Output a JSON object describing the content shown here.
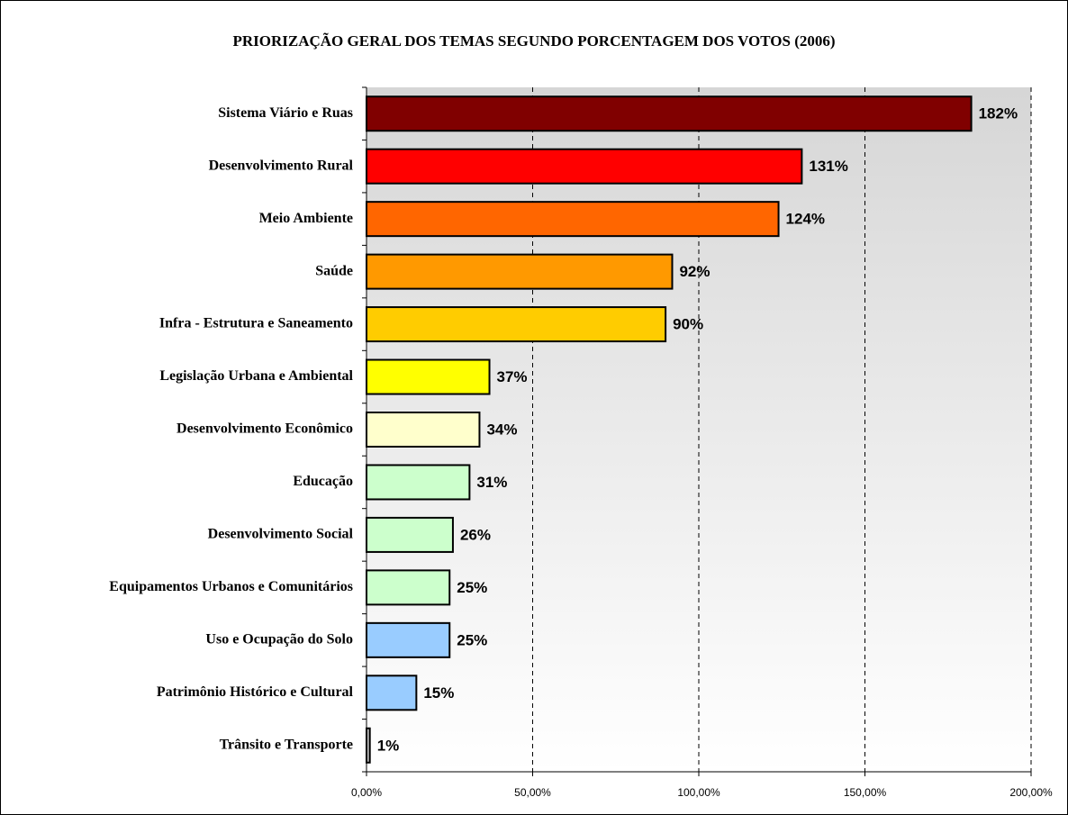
{
  "chart_data": {
    "type": "bar",
    "orientation": "horizontal",
    "title": "PRIORIZAÇÃO GERAL DOS TEMAS SEGUNDO PORCENTAGEM DOS VOTOS (2006)",
    "categories": [
      "Sistema Viário e Ruas",
      "Desenvolvimento Rural",
      "Meio Ambiente",
      "Saúde",
      "Infra - Estrutura e Saneamento",
      "Legislação Urbana e Ambiental",
      "Desenvolvimento Econômico",
      "Educação",
      "Desenvolvimento Social",
      "Equipamentos Urbanos e Comunitários",
      "Uso e Ocupação do Solo",
      "Patrimônio Histórico e Cultural",
      "Trânsito e Transporte"
    ],
    "values": [
      182,
      131,
      124,
      92,
      90,
      37,
      34,
      31,
      26,
      25,
      25,
      15,
      1
    ],
    "value_labels": [
      "182%",
      "131%",
      "124%",
      "92%",
      "90%",
      "37%",
      "34%",
      "31%",
      "26%",
      "25%",
      "25%",
      "15%",
      "1%"
    ],
    "colors": [
      "#800000",
      "#ff0000",
      "#ff6600",
      "#ff9900",
      "#ffcc00",
      "#ffff00",
      "#ffffcc",
      "#ccffcc",
      "#ccffcc",
      "#ccffcc",
      "#99ccff",
      "#99ccff",
      "#c0c0c0"
    ],
    "xlim": [
      0,
      200
    ],
    "xticks": [
      {
        "value": 0,
        "label": "0,00%"
      },
      {
        "value": 50,
        "label": "50,00%"
      },
      {
        "value": 100,
        "label": "100,00%"
      },
      {
        "value": 150,
        "label": "150,00%"
      },
      {
        "value": 200,
        "label": "200,00%"
      }
    ],
    "grid": true
  }
}
